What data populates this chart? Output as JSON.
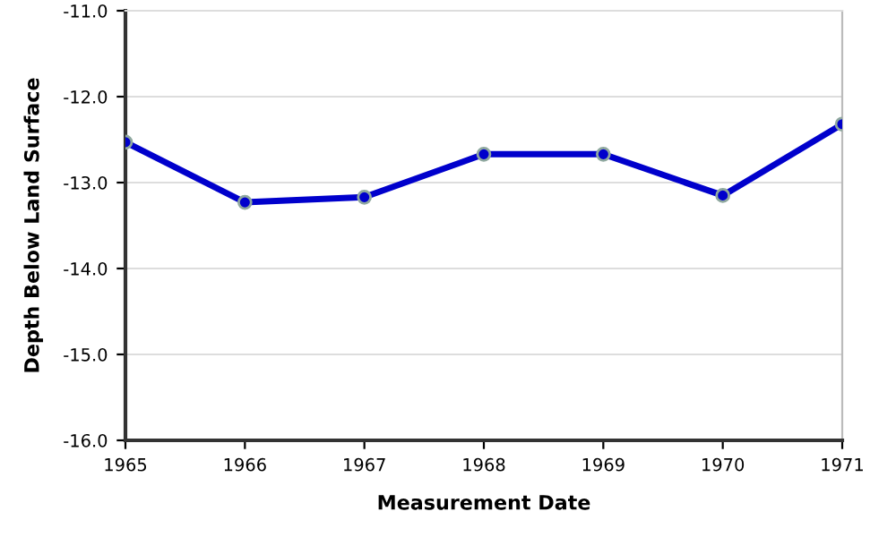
{
  "chart_data": {
    "type": "line",
    "xlabel": "Measurement Date",
    "ylabel": "Depth Below Land Surface",
    "x": [
      1965,
      1966,
      1967,
      1968,
      1969,
      1970,
      1971
    ],
    "series": [
      {
        "color": "#0000cc",
        "values": [
          -12.53,
          -13.23,
          -13.17,
          -12.67,
          -12.67,
          -13.15,
          -12.32
        ]
      }
    ],
    "xlim": [
      1965,
      1971
    ],
    "xticks": [
      1965,
      1966,
      1967,
      1968,
      1969,
      1970,
      1971
    ],
    "ylim": [
      -16,
      -11
    ],
    "yticks": [
      {
        "value": -16,
        "label": "-16.0"
      },
      {
        "value": -15,
        "label": "-15.0"
      },
      {
        "value": -14,
        "label": "-14.0"
      },
      {
        "value": -13,
        "label": "-13.0"
      },
      {
        "value": -12,
        "label": "-12.0"
      },
      {
        "value": -11,
        "label": "-11.0"
      }
    ],
    "grid": "y",
    "marker": "circle",
    "line_style": "solid"
  }
}
